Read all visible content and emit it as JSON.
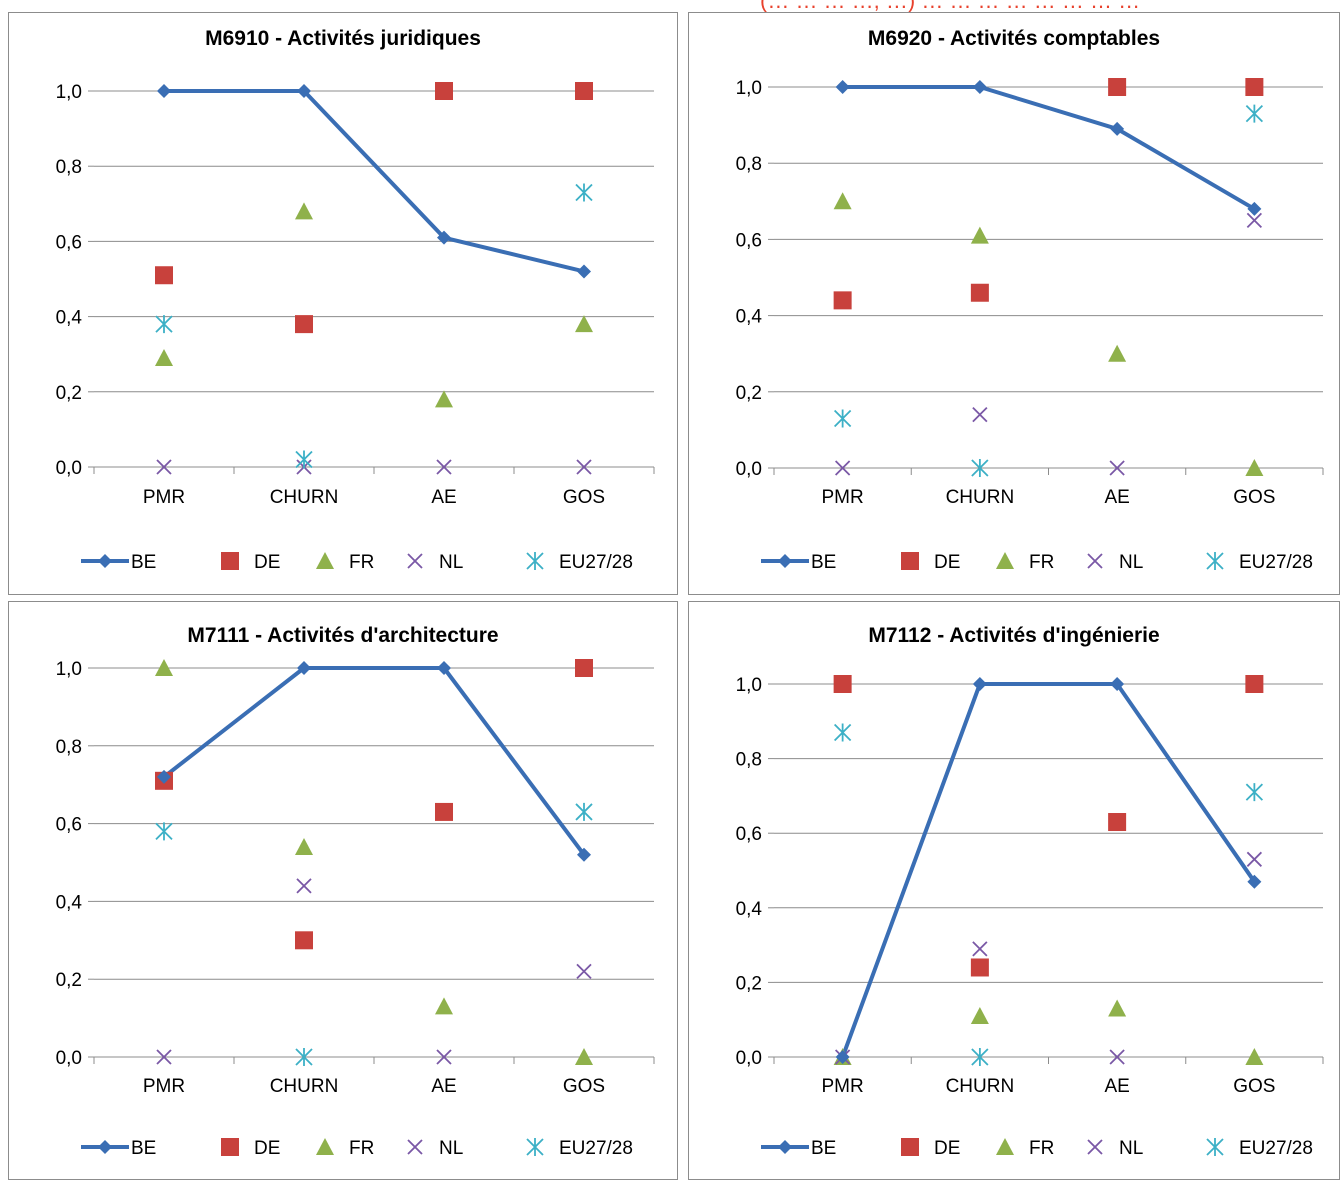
{
  "header_fragment": "(… … … …, …) … … … … … … … …",
  "legend": [
    "BE",
    "DE",
    "FR",
    "NL",
    "EU27/28"
  ],
  "colors": {
    "BE": "#3a6eb4",
    "DE": "#c8413c",
    "FR": "#8fb14b",
    "NL": "#7a58a6",
    "EU27/28": "#3cb0c6"
  },
  "chart_data": [
    {
      "type": "line",
      "title": "M6910 - Activités juridiques",
      "categories": [
        "PMR",
        "CHURN",
        "AE",
        "GOS"
      ],
      "ylim": [
        0,
        1
      ],
      "yticks": [
        "0,0",
        "0,2",
        "0,4",
        "0,6",
        "0,8",
        "1,0"
      ],
      "series": [
        {
          "name": "BE",
          "values": [
            1.0,
            1.0,
            0.61,
            0.52
          ]
        },
        {
          "name": "DE",
          "values": [
            0.51,
            0.38,
            1.0,
            1.0
          ]
        },
        {
          "name": "FR",
          "values": [
            0.29,
            0.68,
            0.18,
            0.38
          ]
        },
        {
          "name": "NL",
          "values": [
            0.0,
            0.0,
            0.0,
            0.0
          ]
        },
        {
          "name": "EU27/28",
          "values": [
            0.38,
            0.02,
            null,
            0.73
          ]
        }
      ]
    },
    {
      "type": "line",
      "title": "M6920 - Activités comptables",
      "categories": [
        "PMR",
        "CHURN",
        "AE",
        "GOS"
      ],
      "ylim": [
        0,
        1
      ],
      "yticks": [
        "0,0",
        "0,2",
        "0,4",
        "0,6",
        "0,8",
        "1,0"
      ],
      "series": [
        {
          "name": "BE",
          "values": [
            1.0,
            1.0,
            0.89,
            0.68
          ]
        },
        {
          "name": "DE",
          "values": [
            0.44,
            0.46,
            1.0,
            1.0
          ]
        },
        {
          "name": "FR",
          "values": [
            0.7,
            0.61,
            0.3,
            0.0
          ]
        },
        {
          "name": "NL",
          "values": [
            0.0,
            0.14,
            0.0,
            0.65
          ]
        },
        {
          "name": "EU27/28",
          "values": [
            0.13,
            0.0,
            null,
            0.93
          ]
        }
      ]
    },
    {
      "type": "line",
      "title": "M7111 - Activités d'architecture",
      "categories": [
        "PMR",
        "CHURN",
        "AE",
        "GOS"
      ],
      "ylim": [
        0,
        1
      ],
      "yticks": [
        "0,0",
        "0,2",
        "0,4",
        "0,6",
        "0,8",
        "1,0"
      ],
      "series": [
        {
          "name": "BE",
          "values": [
            0.72,
            1.0,
            1.0,
            0.52
          ]
        },
        {
          "name": "DE",
          "values": [
            0.71,
            0.3,
            0.63,
            1.0
          ]
        },
        {
          "name": "FR",
          "values": [
            1.0,
            0.54,
            0.13,
            0.0
          ]
        },
        {
          "name": "NL",
          "values": [
            0.0,
            0.44,
            0.0,
            0.22
          ]
        },
        {
          "name": "EU27/28",
          "values": [
            0.58,
            0.0,
            null,
            0.63
          ]
        }
      ]
    },
    {
      "type": "line",
      "title": "M7112 - Activités d'ingénierie",
      "categories": [
        "PMR",
        "CHURN",
        "AE",
        "GOS"
      ],
      "ylim": [
        0,
        1
      ],
      "yticks": [
        "0,0",
        "0,2",
        "0,4",
        "0,6",
        "0,8",
        "1,0"
      ],
      "series": [
        {
          "name": "BE",
          "values": [
            0.0,
            1.0,
            1.0,
            0.47
          ]
        },
        {
          "name": "DE",
          "values": [
            1.0,
            0.24,
            0.63,
            1.0
          ]
        },
        {
          "name": "FR",
          "values": [
            0.0,
            0.11,
            0.13,
            0.0
          ]
        },
        {
          "name": "NL",
          "values": [
            0.0,
            0.29,
            0.0,
            0.53
          ]
        },
        {
          "name": "EU27/28",
          "values": [
            0.87,
            0.0,
            null,
            0.71
          ]
        }
      ]
    }
  ]
}
